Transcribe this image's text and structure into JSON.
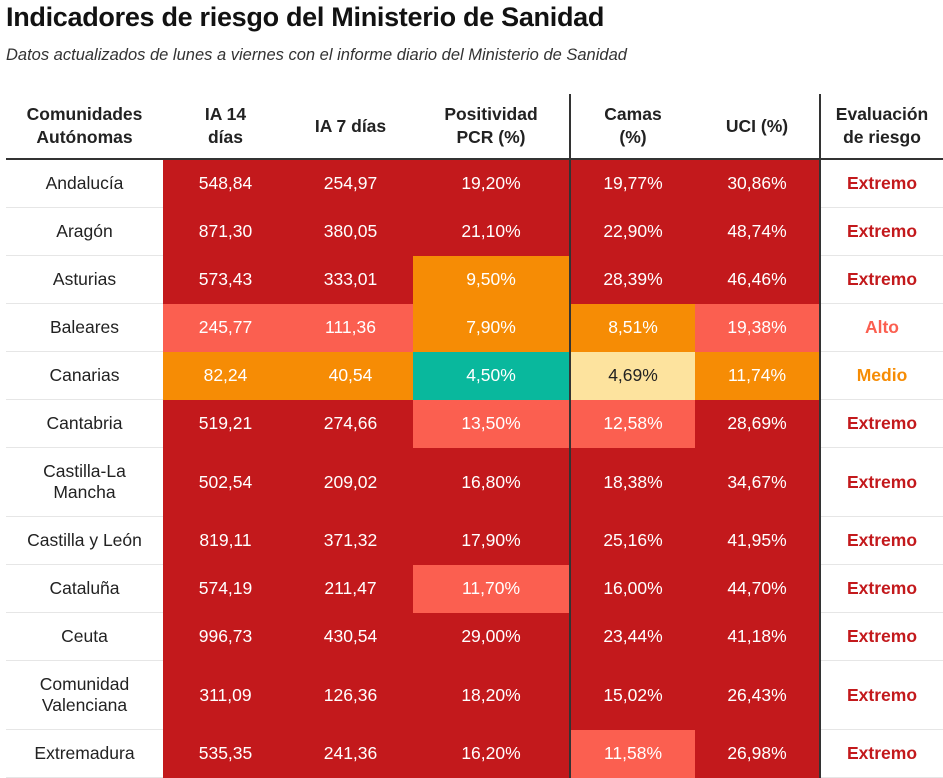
{
  "title": "Indicadores de riesgo del Ministerio de Sanidad",
  "subtitle": "Datos actualizados de lunes a viernes con el informe diario del Ministerio de Sanidad",
  "colors": {
    "Extremo": "#c3191c",
    "Alto": "#fb5f50",
    "Medio": "#f68c05",
    "Bajo": "#fde39e",
    "Nueva normalidad": "#09b89d"
  },
  "chart_data": {
    "type": "table",
    "columns": [
      "Comunidades Autónomas",
      "IA 14 días",
      "IA 7 días",
      "Positividad PCR (%)",
      "Camas (%)",
      "UCI (%)",
      "Evaluación de riesgo"
    ],
    "header": [
      {
        "lines": [
          "Comunidades",
          "Autónomas"
        ]
      },
      {
        "lines": [
          "IA 14",
          "días"
        ]
      },
      {
        "lines": [
          "IA 7 días"
        ]
      },
      {
        "lines": [
          "Positividad",
          "PCR (%)"
        ]
      },
      {
        "lines": [
          "Camas",
          "(%)"
        ]
      },
      {
        "lines": [
          "UCI (%)"
        ]
      },
      {
        "lines": [
          "Evaluación",
          "de riesgo"
        ]
      }
    ],
    "rows": [
      {
        "region": [
          "Andalucía"
        ],
        "values": [
          "548,84",
          "254,97",
          "19,20%",
          "19,77%",
          "30,86%"
        ],
        "levels": [
          "Extremo",
          "Extremo",
          "Extremo",
          "Extremo",
          "Extremo"
        ],
        "evaluation": "Extremo"
      },
      {
        "region": [
          "Aragón"
        ],
        "values": [
          "871,30",
          "380,05",
          "21,10%",
          "22,90%",
          "48,74%"
        ],
        "levels": [
          "Extremo",
          "Extremo",
          "Extremo",
          "Extremo",
          "Extremo"
        ],
        "evaluation": "Extremo"
      },
      {
        "region": [
          "Asturias"
        ],
        "values": [
          "573,43",
          "333,01",
          "9,50%",
          "28,39%",
          "46,46%"
        ],
        "levels": [
          "Extremo",
          "Extremo",
          "Medio",
          "Extremo",
          "Extremo"
        ],
        "evaluation": "Extremo"
      },
      {
        "region": [
          "Baleares"
        ],
        "values": [
          "245,77",
          "111,36",
          "7,90%",
          "8,51%",
          "19,38%"
        ],
        "levels": [
          "Alto",
          "Alto",
          "Medio",
          "Medio",
          "Alto"
        ],
        "evaluation": "Alto"
      },
      {
        "region": [
          "Canarias"
        ],
        "values": [
          "82,24",
          "40,54",
          "4,50%",
          "4,69%",
          "11,74%"
        ],
        "levels": [
          "Medio",
          "Medio",
          "Nueva normalidad",
          "Bajo",
          "Medio"
        ],
        "evaluation": "Medio"
      },
      {
        "region": [
          "Cantabria"
        ],
        "values": [
          "519,21",
          "274,66",
          "13,50%",
          "12,58%",
          "28,69%"
        ],
        "levels": [
          "Extremo",
          "Extremo",
          "Alto",
          "Alto",
          "Extremo"
        ],
        "evaluation": "Extremo"
      },
      {
        "region": [
          "Castilla-La",
          "Mancha"
        ],
        "values": [
          "502,54",
          "209,02",
          "16,80%",
          "18,38%",
          "34,67%"
        ],
        "levels": [
          "Extremo",
          "Extremo",
          "Extremo",
          "Extremo",
          "Extremo"
        ],
        "evaluation": "Extremo"
      },
      {
        "region": [
          "Castilla y León"
        ],
        "values": [
          "819,11",
          "371,32",
          "17,90%",
          "25,16%",
          "41,95%"
        ],
        "levels": [
          "Extremo",
          "Extremo",
          "Extremo",
          "Extremo",
          "Extremo"
        ],
        "evaluation": "Extremo"
      },
      {
        "region": [
          "Cataluña"
        ],
        "values": [
          "574,19",
          "211,47",
          "11,70%",
          "16,00%",
          "44,70%"
        ],
        "levels": [
          "Extremo",
          "Extremo",
          "Alto",
          "Extremo",
          "Extremo"
        ],
        "evaluation": "Extremo"
      },
      {
        "region": [
          "Ceuta"
        ],
        "values": [
          "996,73",
          "430,54",
          "29,00%",
          "23,44%",
          "41,18%"
        ],
        "levels": [
          "Extremo",
          "Extremo",
          "Extremo",
          "Extremo",
          "Extremo"
        ],
        "evaluation": "Extremo"
      },
      {
        "region": [
          "Comunidad",
          "Valenciana"
        ],
        "values": [
          "311,09",
          "126,36",
          "18,20%",
          "15,02%",
          "26,43%"
        ],
        "levels": [
          "Extremo",
          "Extremo",
          "Extremo",
          "Extremo",
          "Extremo"
        ],
        "evaluation": "Extremo"
      },
      {
        "region": [
          "Extremadura"
        ],
        "values": [
          "535,35",
          "241,36",
          "16,20%",
          "11,58%",
          "26,98%"
        ],
        "levels": [
          "Extremo",
          "Extremo",
          "Extremo",
          "Alto",
          "Extremo"
        ],
        "evaluation": "Extremo"
      }
    ]
  }
}
